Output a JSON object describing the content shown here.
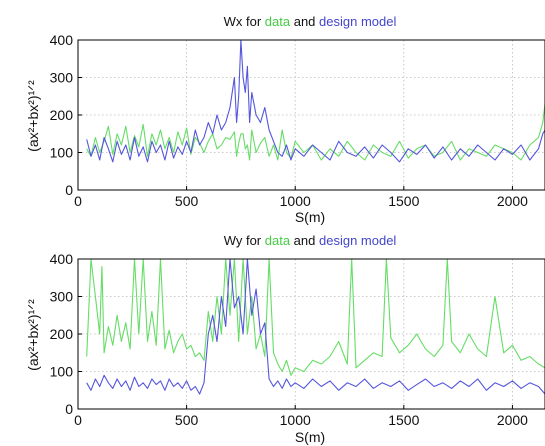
{
  "chart_data": [
    {
      "type": "line",
      "title_prefix": "Wx for ",
      "title_data": "data",
      "title_and": " and ",
      "title_model": "design model",
      "xlabel": "S(m)",
      "ylabel": "(ax²+bx²)¹ᐟ²",
      "xlim": [
        0,
        2150
      ],
      "ylim": [
        0,
        400
      ],
      "xticks": [
        "0",
        "500",
        "1000",
        "1500",
        "2000"
      ],
      "yticks": [
        "0",
        "100",
        "200",
        "300",
        "400"
      ],
      "grid": true,
      "series": [
        {
          "name": "data",
          "color": "#66dd66",
          "x": [
            40,
            60,
            80,
            100,
            120,
            140,
            160,
            180,
            200,
            220,
            240,
            260,
            280,
            300,
            320,
            340,
            360,
            380,
            400,
            420,
            440,
            460,
            480,
            500,
            520,
            540,
            560,
            580,
            600,
            620,
            640,
            660,
            680,
            700,
            720,
            730,
            740,
            750,
            760,
            770,
            780,
            790,
            800,
            820,
            840,
            860,
            880,
            900,
            920,
            940,
            960,
            980,
            1000,
            1040,
            1080,
            1120,
            1160,
            1200,
            1240,
            1280,
            1320,
            1360,
            1400,
            1440,
            1480,
            1520,
            1560,
            1600,
            1640,
            1680,
            1720,
            1760,
            1800,
            1840,
            1880,
            1920,
            1960,
            2000,
            2040,
            2080,
            2120,
            2140,
            2150
          ],
          "y": [
            110,
            90,
            140,
            100,
            130,
            170,
            95,
            150,
            120,
            170,
            100,
            145,
            115,
            175,
            90,
            150,
            120,
            160,
            110,
            140,
            100,
            155,
            120,
            165,
            95,
            140,
            125,
            100,
            130,
            150,
            110,
            120,
            140,
            135,
            155,
            90,
            125,
            150,
            150,
            110,
            120,
            80,
            160,
            100,
            125,
            140,
            90,
            120,
            80,
            160,
            100,
            85,
            130,
            100,
            120,
            80,
            110,
            90,
            130,
            100,
            80,
            120,
            100,
            90,
            130,
            85,
            110,
            120,
            90,
            100,
            130,
            80,
            110,
            100,
            90,
            120,
            110,
            100,
            80,
            120,
            140,
            180,
            230
          ]
        },
        {
          "name": "design model",
          "color": "#5555dd",
          "x": [
            40,
            60,
            80,
            100,
            120,
            140,
            160,
            180,
            200,
            220,
            240,
            260,
            280,
            300,
            320,
            340,
            360,
            380,
            400,
            420,
            440,
            460,
            480,
            500,
            520,
            540,
            560,
            580,
            600,
            620,
            640,
            660,
            680,
            700,
            720,
            730,
            740,
            750,
            760,
            770,
            780,
            790,
            800,
            820,
            840,
            860,
            880,
            900,
            920,
            940,
            960,
            980,
            1000,
            1040,
            1080,
            1120,
            1160,
            1200,
            1240,
            1280,
            1320,
            1360,
            1400,
            1440,
            1480,
            1520,
            1560,
            1600,
            1640,
            1680,
            1720,
            1760,
            1800,
            1840,
            1880,
            1920,
            1960,
            2000,
            2040,
            2080,
            2120,
            2140,
            2150
          ],
          "y": [
            135,
            90,
            120,
            80,
            140,
            110,
            75,
            130,
            95,
            120,
            80,
            140,
            90,
            115,
            75,
            130,
            100,
            120,
            80,
            130,
            85,
            115,
            95,
            130,
            100,
            160,
            120,
            140,
            180,
            150,
            200,
            160,
            180,
            220,
            300,
            180,
            250,
            400,
            300,
            260,
            330,
            180,
            260,
            200,
            180,
            220,
            160,
            130,
            100,
            90,
            120,
            80,
            110,
            90,
            120,
            100,
            80,
            130,
            100,
            90,
            115,
            85,
            120,
            100,
            75,
            110,
            95,
            120,
            85,
            115,
            80,
            110,
            90,
            120,
            100,
            80,
            110,
            95,
            120,
            80,
            110,
            150,
            160
          ]
        }
      ]
    },
    {
      "type": "line",
      "title_prefix": "Wy for ",
      "title_data": "data",
      "title_and": " and ",
      "title_model": "design model",
      "xlabel": "S(m)",
      "ylabel": "(ax²+bx²)¹ᐟ²",
      "xlim": [
        0,
        2150
      ],
      "ylim": [
        0,
        400
      ],
      "xticks": [
        "0",
        "500",
        "1000",
        "1500",
        "2000"
      ],
      "yticks": [
        "0",
        "100",
        "200",
        "300",
        "400"
      ],
      "grid": true,
      "series": [
        {
          "name": "data",
          "color": "#66dd66",
          "x": [
            40,
            60,
            80,
            100,
            110,
            120,
            140,
            160,
            180,
            200,
            220,
            240,
            260,
            280,
            300,
            320,
            340,
            360,
            380,
            400,
            420,
            440,
            460,
            480,
            500,
            520,
            540,
            560,
            580,
            600,
            620,
            640,
            660,
            680,
            700,
            720,
            740,
            760,
            780,
            800,
            820,
            840,
            860,
            880,
            900,
            920,
            940,
            960,
            980,
            1000,
            1040,
            1080,
            1120,
            1160,
            1200,
            1240,
            1260,
            1280,
            1320,
            1360,
            1400,
            1420,
            1440,
            1480,
            1520,
            1560,
            1600,
            1640,
            1680,
            1700,
            1720,
            1760,
            1800,
            1840,
            1880,
            1920,
            1960,
            2000,
            2040,
            2080,
            2120,
            2150
          ],
          "y": [
            140,
            400,
            300,
            200,
            380,
            150,
            220,
            170,
            250,
            180,
            230,
            160,
            400,
            200,
            400,
            180,
            260,
            170,
            400,
            160,
            210,
            150,
            180,
            200,
            160,
            170,
            140,
            150,
            130,
            260,
            180,
            300,
            200,
            400,
            250,
            400,
            180,
            400,
            200,
            300,
            160,
            200,
            140,
            400,
            150,
            120,
            100,
            130,
            90,
            110,
            100,
            130,
            120,
            140,
            180,
            120,
            400,
            110,
            130,
            150,
            140,
            400,
            190,
            150,
            170,
            200,
            160,
            140,
            170,
            400,
            180,
            150,
            200,
            160,
            140,
            300,
            150,
            170,
            130,
            140,
            120,
            110
          ]
        },
        {
          "name": "design model",
          "color": "#5555dd",
          "x": [
            40,
            60,
            80,
            100,
            120,
            140,
            160,
            180,
            200,
            220,
            240,
            260,
            280,
            300,
            320,
            340,
            360,
            380,
            400,
            420,
            440,
            460,
            480,
            500,
            520,
            540,
            560,
            580,
            600,
            620,
            640,
            660,
            680,
            700,
            720,
            740,
            760,
            780,
            800,
            820,
            840,
            860,
            880,
            900,
            920,
            940,
            960,
            980,
            1000,
            1040,
            1080,
            1120,
            1160,
            1200,
            1240,
            1280,
            1320,
            1360,
            1400,
            1440,
            1480,
            1520,
            1560,
            1600,
            1640,
            1680,
            1720,
            1760,
            1800,
            1840,
            1880,
            1920,
            1960,
            2000,
            2040,
            2080,
            2120,
            2150
          ],
          "y": [
            70,
            50,
            80,
            60,
            90,
            70,
            55,
            80,
            60,
            75,
            50,
            85,
            60,
            70,
            55,
            80,
            65,
            75,
            50,
            80,
            60,
            70,
            55,
            75,
            50,
            60,
            40,
            70,
            200,
            250,
            180,
            300,
            220,
            400,
            270,
            300,
            200,
            400,
            250,
            320,
            200,
            230,
            80,
            60,
            75,
            55,
            80,
            60,
            70,
            55,
            80,
            60,
            75,
            50,
            70,
            60,
            80,
            55,
            70,
            60,
            75,
            50,
            65,
            80,
            60,
            70,
            55,
            75,
            60,
            80,
            50,
            70,
            60,
            75,
            55,
            70,
            60,
            40
          ]
        }
      ]
    }
  ]
}
